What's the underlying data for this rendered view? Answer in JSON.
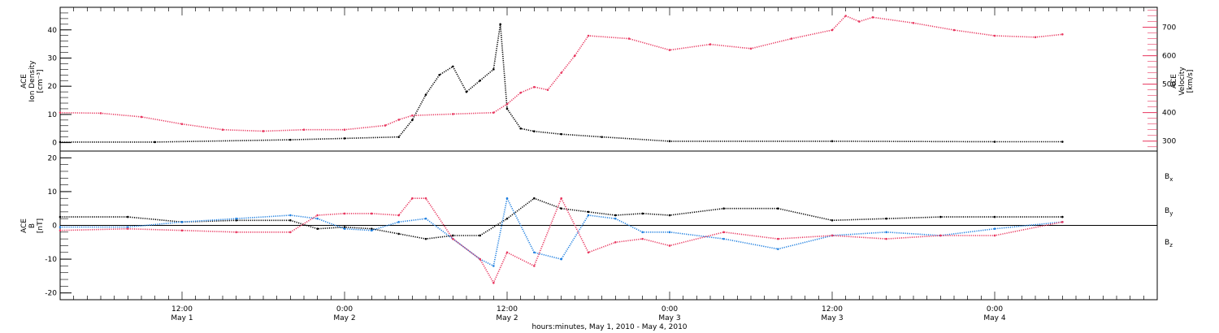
{
  "xaxis": {
    "title": "hours:minutes, May  1, 2010 - May  4, 2010",
    "ticks": [
      {
        "time": "12:00",
        "day": "May 1",
        "hours": 12
      },
      {
        "time": "0:00",
        "day": "May 2",
        "hours": 24
      },
      {
        "time": "12:00",
        "day": "May 2",
        "hours": 36
      },
      {
        "time": "0:00",
        "day": "May 3",
        "hours": 48
      },
      {
        "time": "12:00",
        "day": "May 3",
        "hours": 60
      },
      {
        "time": "0:00",
        "day": "May 4",
        "hours": 72
      }
    ]
  },
  "colors": {
    "black": "#000000",
    "red": "#e8375f",
    "blue": "#1e7fe0"
  },
  "chart_data": [
    {
      "type": "scatter",
      "panel": "top",
      "xlim_hours_since_may1": [
        3,
        84
      ],
      "left_axis": {
        "label_lines": [
          "ACE",
          "Ion Density",
          "[cm⁻³]"
        ],
        "ylim": [
          -3,
          48
        ],
        "ticks": [
          "0",
          "10",
          "20",
          "30",
          "40"
        ],
        "tick_values": [
          0,
          10,
          20,
          30,
          40
        ]
      },
      "right_axis": {
        "label_lines": [
          "ACE",
          "Velocity",
          "[km/s]"
        ],
        "ylim": [
          265,
          770
        ],
        "ticks": [
          "300",
          "400",
          "500",
          "600",
          "700"
        ],
        "tick_values": [
          300,
          400,
          500,
          600,
          700
        ]
      },
      "series": [
        {
          "name": "Ion Density",
          "color": "black",
          "axis": "left",
          "x": [
            3,
            10,
            20,
            24,
            28,
            29,
            30,
            31,
            32,
            33,
            34,
            35,
            35.5,
            36,
            37,
            38,
            40,
            43,
            48,
            60,
            72,
            77
          ],
          "y": [
            0.2,
            0.2,
            1,
            1.5,
            2,
            8,
            17,
            24,
            27,
            18,
            22,
            26,
            42,
            12,
            5,
            4,
            3,
            2,
            0.5,
            0.5,
            0.3,
            0.3
          ]
        },
        {
          "name": "Velocity",
          "color": "red",
          "axis": "right",
          "x": [
            3,
            6,
            9,
            12,
            15,
            18,
            21,
            24,
            27,
            28,
            29,
            32,
            35,
            36,
            37,
            38,
            39,
            40,
            41,
            42,
            45,
            48,
            51,
            54,
            57,
            60,
            61,
            62,
            63,
            66,
            69,
            72,
            75,
            77
          ],
          "y": [
            400,
            398,
            385,
            360,
            340,
            335,
            340,
            340,
            355,
            375,
            390,
            395,
            400,
            430,
            470,
            490,
            480,
            540,
            600,
            670,
            660,
            620,
            640,
            625,
            660,
            690,
            740,
            720,
            735,
            715,
            690,
            670,
            665,
            675
          ]
        }
      ]
    },
    {
      "type": "scatter",
      "panel": "bottom",
      "xlim_hours_since_may1": [
        3,
        84
      ],
      "axis": {
        "label_lines": [
          "ACE",
          "B",
          "[nT]"
        ],
        "ylim": [
          -22,
          22
        ],
        "ticks": [
          "-20",
          "-10",
          "0",
          "10",
          "20"
        ],
        "tick_values": [
          -20,
          -10,
          0,
          10,
          20
        ]
      },
      "legend": [
        {
          "label": "B",
          "sub": "x",
          "color": "black"
        },
        {
          "label": "B",
          "sub": "y",
          "color": "blue"
        },
        {
          "label": "B",
          "sub": "z",
          "color": "red"
        }
      ],
      "series": [
        {
          "name": "Bx",
          "color": "black",
          "x": [
            3,
            8,
            12,
            16,
            20,
            22,
            24,
            26,
            28,
            30,
            32,
            34,
            36,
            38,
            40,
            42,
            44,
            46,
            48,
            52,
            56,
            60,
            64,
            68,
            72,
            77
          ],
          "y": [
            2.5,
            2.5,
            1,
            1.5,
            1.5,
            -1,
            -0.5,
            -1,
            -2.5,
            -4,
            -3,
            -3,
            2,
            8,
            5,
            4,
            3,
            3.5,
            3,
            5,
            5,
            1.5,
            2,
            2.5,
            2.5,
            2.5
          ]
        },
        {
          "name": "By",
          "color": "blue",
          "x": [
            3,
            8,
            12,
            16,
            20,
            22,
            24,
            26,
            28,
            30,
            32,
            34,
            35,
            36,
            38,
            40,
            42,
            44,
            46,
            48,
            52,
            56,
            60,
            64,
            68,
            72,
            77
          ],
          "y": [
            -0.5,
            -0.5,
            1,
            2,
            3,
            2,
            -1,
            -1.5,
            1,
            2,
            -4,
            -10,
            -12,
            8,
            -8,
            -10,
            3,
            2,
            -2,
            -2,
            -4,
            -7,
            -3,
            -2,
            -3,
            -1,
            1
          ]
        },
        {
          "name": "Bz",
          "color": "red",
          "x": [
            3,
            8,
            12,
            16,
            20,
            22,
            24,
            26,
            28,
            29,
            30,
            32,
            34,
            35,
            36,
            38,
            40,
            42,
            44,
            46,
            48,
            52,
            56,
            60,
            64,
            68,
            72,
            77
          ],
          "y": [
            -1.5,
            -1,
            -1.5,
            -2,
            -2,
            3,
            3.5,
            3.5,
            3,
            8,
            8,
            -4,
            -10,
            -17,
            -8,
            -12,
            8,
            -8,
            -5,
            -4,
            -6,
            -2,
            -4,
            -3,
            -4,
            -3,
            -3,
            1
          ]
        }
      ]
    }
  ]
}
